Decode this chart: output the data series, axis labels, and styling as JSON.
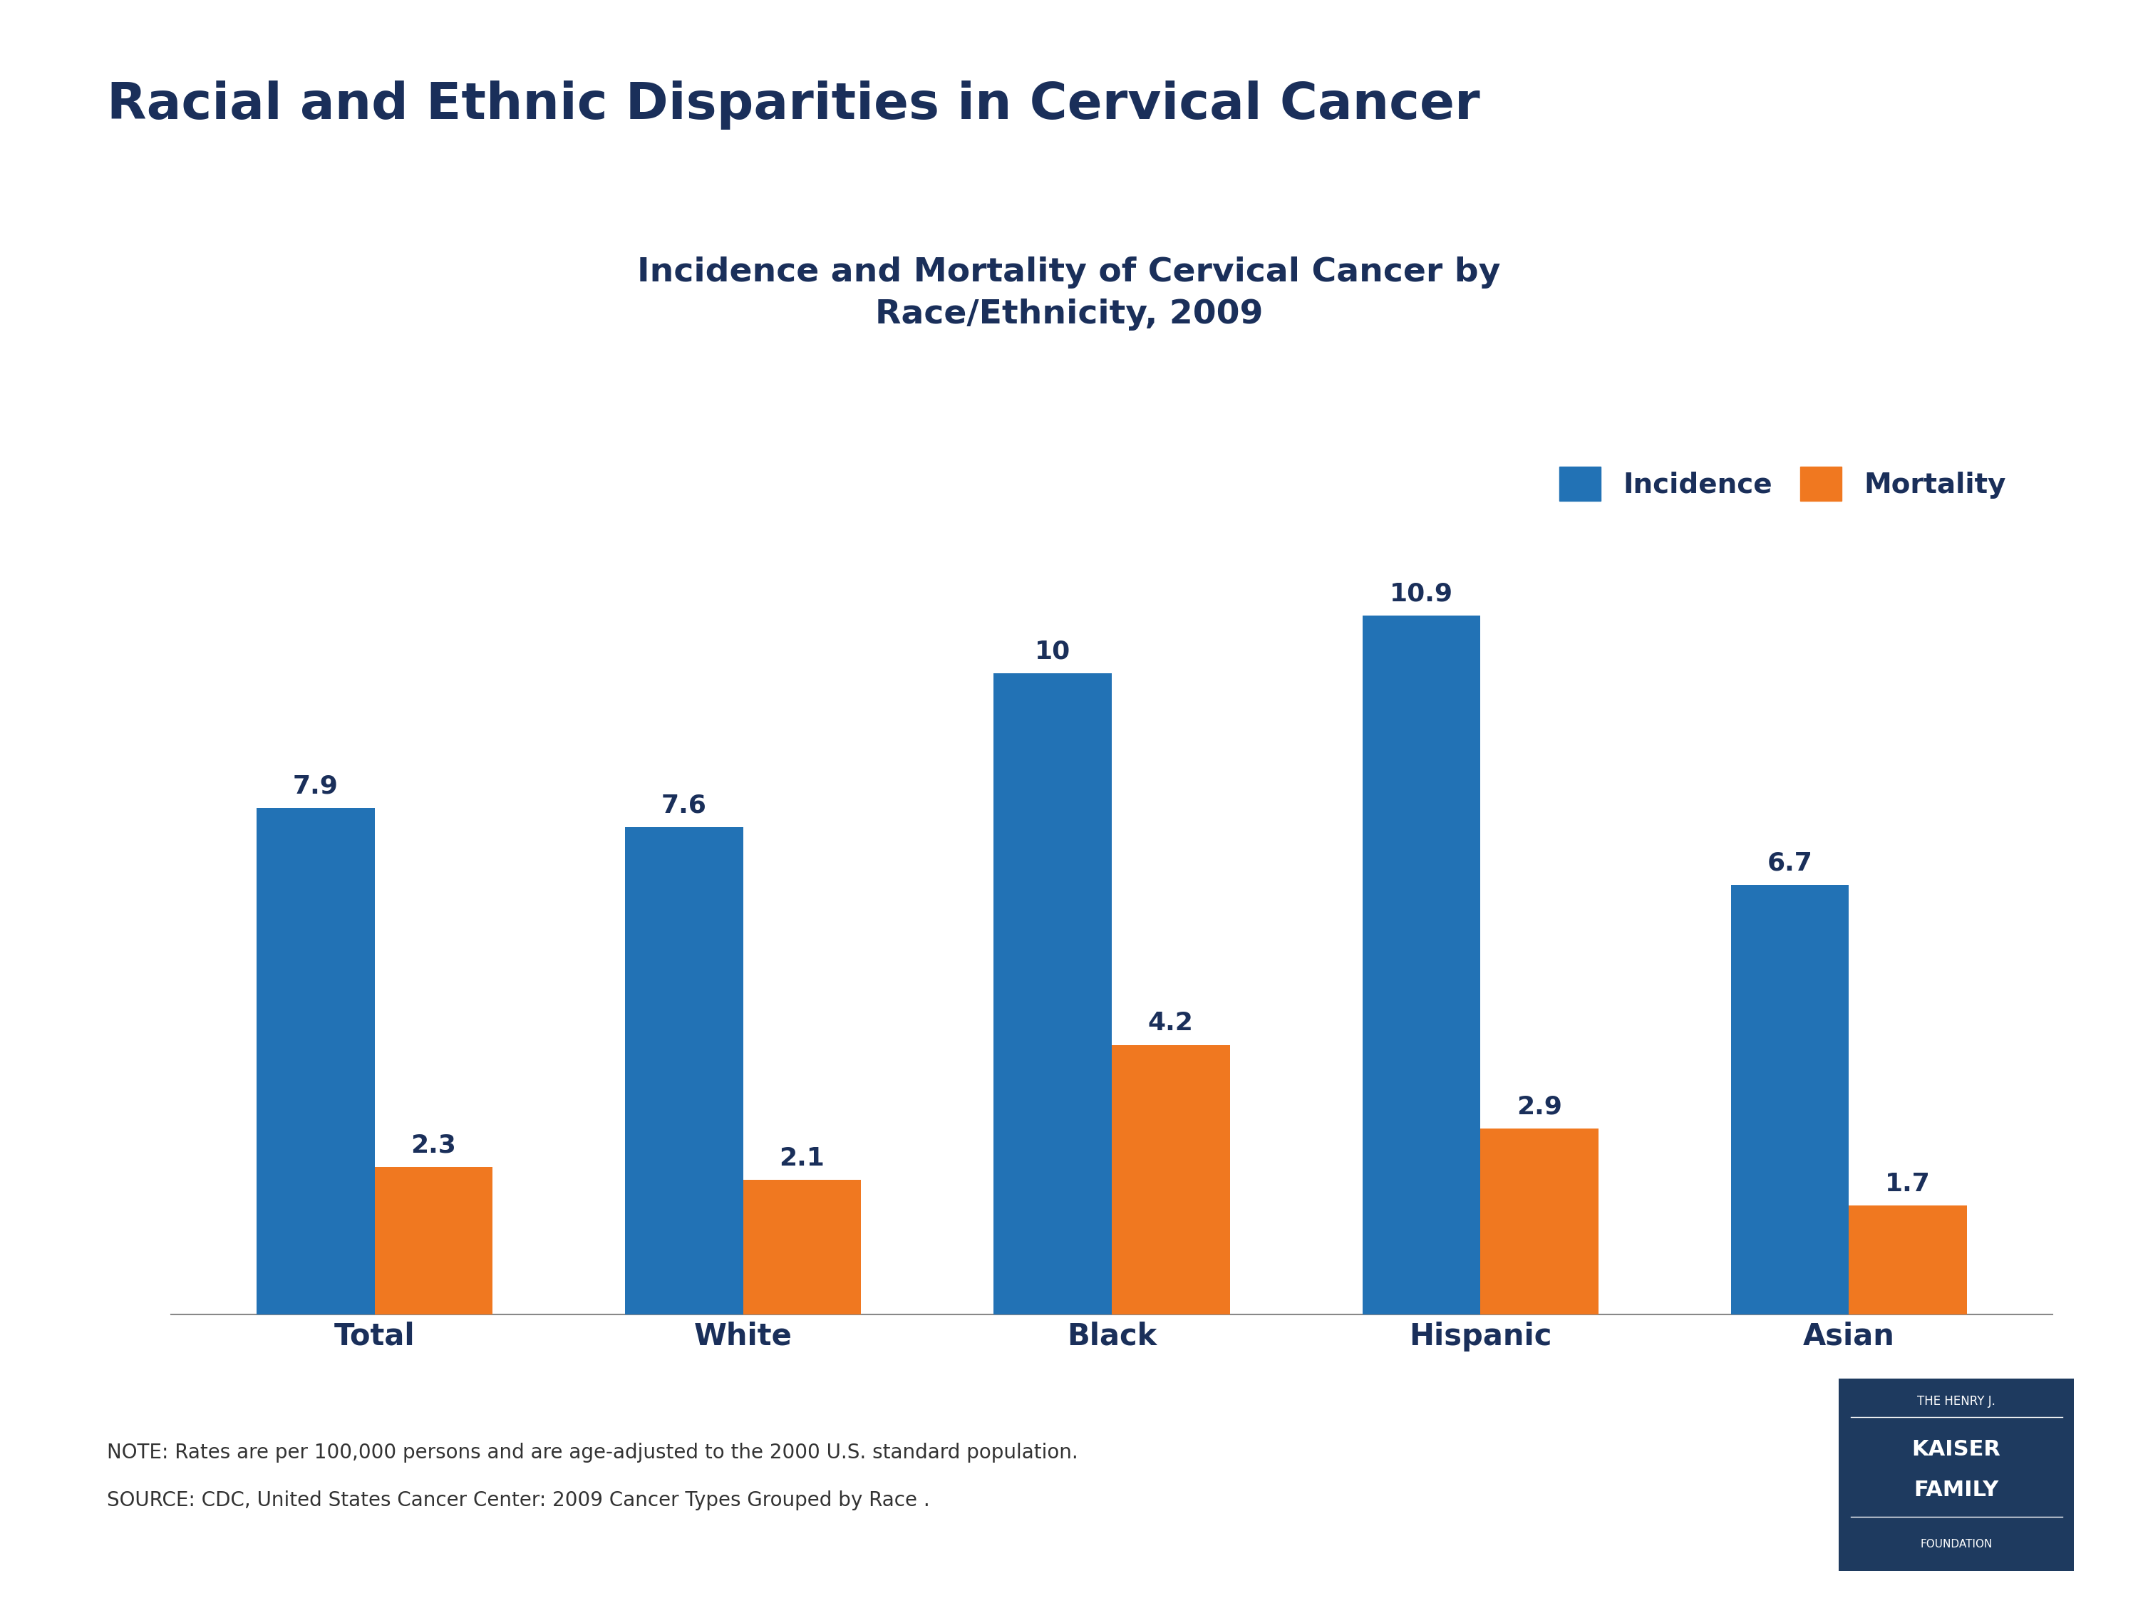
{
  "title": "Racial and Ethnic Disparities in Cervical Cancer",
  "subtitle": "Incidence and Mortality of Cervical Cancer by\nRace/Ethnicity, 2009",
  "categories": [
    "Total",
    "White",
    "Black",
    "Hispanic",
    "Asian"
  ],
  "incidence": [
    7.9,
    7.6,
    10.0,
    10.9,
    6.7
  ],
  "mortality": [
    2.3,
    2.1,
    4.2,
    2.9,
    1.7
  ],
  "incidence_color": "#2272B5",
  "mortality_color": "#F07820",
  "title_color": "#1A2F5A",
  "label_color": "#1A2F5A",
  "axis_label_color": "#1A2F5A",
  "note_line1": "NOTE: Rates are per 100,000 persons and are age-adjusted to the 2000 U.S. standard population.",
  "note_line2": "SOURCE: CDC, United States Cancer Center: 2009 Cancer Types Grouped by Race .",
  "background_color": "#FFFFFF",
  "bar_width": 0.32,
  "ylim": [
    0,
    13
  ],
  "legend_incidence": "Incidence",
  "legend_mortality": "Mortality",
  "kff_box_color": "#1E3A5F"
}
